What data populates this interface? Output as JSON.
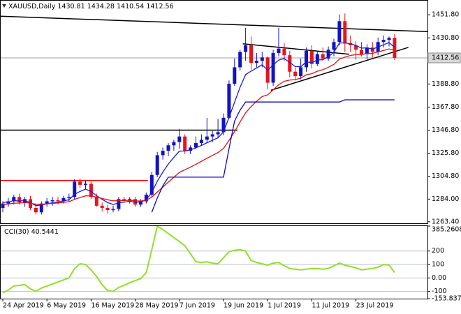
{
  "chart_data": [
    {
      "type": "candlestick",
      "symbol": "XAUUSD,Daily",
      "categories": [
        "24 Apr 2019",
        null,
        null,
        null,
        null,
        null,
        null,
        null,
        "6 May 2019",
        null,
        null,
        null,
        null,
        null,
        null,
        null,
        "16 May 2019",
        null,
        null,
        null,
        null,
        null,
        null,
        null,
        "28 May 2019",
        null,
        null,
        null,
        null,
        null,
        null,
        null,
        "7 Jun 2019",
        null,
        null,
        null,
        null,
        null,
        null,
        null,
        "19 Jun 2019",
        null,
        null,
        null,
        null,
        null,
        null,
        null,
        "1 Jul 2019",
        null,
        null,
        null,
        null,
        null,
        null,
        null,
        "11 Jul 2019",
        null,
        null,
        null,
        null,
        null,
        null,
        null,
        "23 Jul 2019",
        null,
        null,
        null,
        null,
        null,
        null,
        null
      ],
      "open": [
        1276,
        1280,
        1282,
        1286,
        1281,
        1284,
        1276,
        1272,
        1280,
        1282,
        1283,
        1282,
        1285,
        1286,
        1300,
        1297,
        1298,
        1286,
        1278,
        1276,
        1274,
        1275,
        1284,
        1283,
        1284,
        1279,
        1282,
        1288,
        1306,
        1324,
        1328,
        1333,
        1336,
        1341,
        1328,
        1331,
        1335,
        1338,
        1341,
        1343,
        1345,
        1358,
        1389,
        1404,
        1418,
        1424,
        1408,
        1410,
        1413,
        1390,
        1417,
        1421,
        1415,
        1400,
        1396,
        1404,
        1419,
        1407,
        1416,
        1412,
        1420,
        1427,
        1446,
        1426,
        1424,
        1420,
        1416,
        1422,
        1418,
        1427,
        1429,
        1430.81
      ],
      "high": [
        1282,
        1285,
        1288,
        1289,
        1286,
        1287,
        1280,
        1282,
        1285,
        1286,
        1286,
        1287,
        1289,
        1302,
        1303,
        1301,
        1300,
        1289,
        1281,
        1279,
        1278,
        1286,
        1286,
        1286,
        1286,
        1284,
        1290,
        1309,
        1327,
        1331,
        1335,
        1338,
        1348,
        1343,
        1333,
        1341,
        1343,
        1358,
        1346,
        1357,
        1362,
        1392,
        1412,
        1420,
        1440,
        1432,
        1417,
        1418,
        1414,
        1420,
        1440,
        1426,
        1419,
        1404,
        1412,
        1422,
        1424,
        1418,
        1422,
        1423,
        1430,
        1452,
        1453,
        1433,
        1428,
        1427,
        1425,
        1427,
        1431,
        1433,
        1432,
        1434.28
      ],
      "low": [
        1272,
        1277,
        1279,
        1279,
        1277,
        1274,
        1270,
        1270,
        1277,
        1278,
        1279,
        1280,
        1282,
        1284,
        1294,
        1293,
        1284,
        1277,
        1273,
        1271,
        1272,
        1273,
        1281,
        1280,
        1277,
        1277,
        1280,
        1286,
        1304,
        1320,
        1323,
        1328,
        1330,
        1325,
        1325,
        1330,
        1333,
        1335,
        1336,
        1340,
        1342,
        1357,
        1387,
        1401,
        1410,
        1402,
        1404,
        1404,
        1384,
        1387,
        1414,
        1410,
        1395,
        1392,
        1393,
        1400,
        1403,
        1405,
        1410,
        1410,
        1414,
        1424,
        1418,
        1418,
        1411,
        1414,
        1411,
        1413,
        1415,
        1422,
        1423,
        1410.54
      ],
      "close": [
        1280,
        1282,
        1286,
        1281,
        1284,
        1276,
        1272,
        1280,
        1282,
        1283,
        1282,
        1285,
        1286,
        1300,
        1297,
        1298,
        1286,
        1278,
        1276,
        1274,
        1275,
        1284,
        1283,
        1284,
        1279,
        1282,
        1288,
        1306,
        1324,
        1328,
        1333,
        1336,
        1341,
        1328,
        1331,
        1335,
        1338,
        1341,
        1343,
        1345,
        1358,
        1389,
        1404,
        1418,
        1424,
        1408,
        1410,
        1413,
        1390,
        1417,
        1421,
        1415,
        1400,
        1396,
        1404,
        1419,
        1407,
        1416,
        1412,
        1420,
        1427,
        1446,
        1426,
        1424,
        1420,
        1416,
        1422,
        1418,
        1427,
        1429,
        1430.81,
        1412.56
      ],
      "up_color": "#1212c4",
      "down_color": "#e8131b",
      "price_line_color": "#a0a0a0",
      "overlays": [
        {
          "color": "#1a1ad8",
          "values": [
            1281,
            1281.3,
            1282.7,
            1282.2,
            1282.7,
            1280.7,
            1278.1,
            1278.7,
            1279.7,
            1280.7,
            1281.1,
            1282.3,
            1283.4,
            1288.4,
            1291,
            1293.1,
            1291,
            1287.1,
            1283.8,
            1280.9,
            1279.1,
            1280.6,
            1281.3,
            1282.1,
            1281.2,
            1281.4,
            1283.4,
            1290.2,
            1300.3,
            1308.6,
            1316,
            1322,
            1327.7,
            1327.8,
            1328.8,
            1330.7,
            1332.9,
            1335.3,
            1337.6,
            1339.8,
            1345.3,
            1358.4,
            1372.1,
            1385.9,
            1397.3,
            1400.5,
            1403.4,
            1406.3,
            1401.4,
            1406.1,
            1410.6,
            1412,
            1408.4,
            1404.7,
            1404.5,
            1408.9,
            1408.3,
            1410.6,
            1411,
            1413.7,
            1417.7,
            1426.2,
            1426.1,
            1425.5,
            1423.9,
            1421.5,
            1421.7,
            1420.6,
            1422.5,
            1424.5,
            1426.5,
            1422.3
          ]
        },
        {
          "color": "#e01010",
          "values": [
            1279.1,
            1279.5,
            1280.3,
            1280.4,
            1280.9,
            1280.3,
            1279.3,
            1279.4,
            1279.7,
            1280.1,
            1280.5,
            1281,
            1281.6,
            1283.8,
            1285.4,
            1287,
            1286.9,
            1285.8,
            1284.6,
            1283.4,
            1282.4,
            1282.6,
            1282.7,
            1282.9,
            1282.4,
            1282.3,
            1283,
            1285.8,
            1290.4,
            1294.9,
            1299.5,
            1303.9,
            1308.3,
            1310.7,
            1313.1,
            1315.7,
            1318.4,
            1321.2,
            1323.8,
            1326.4,
            1330.2,
            1337.4,
            1345.4,
            1354.2,
            1362.6,
            1368.2,
            1373.2,
            1377.4,
            1378.9,
            1383.5,
            1388.1,
            1391.3,
            1392.4,
            1392.8,
            1394.2,
            1397.2,
            1398.2,
            1400.4,
            1401.8,
            1404,
            1406.7,
            1411.5,
            1413.3,
            1414.8,
            1415.6,
            1415.7,
            1416.5,
            1416.7,
            1418,
            1419.3,
            1420.7,
            1419.7
          ]
        },
        {
          "color": "#0a0ac0",
          "values": [
            null,
            null,
            null,
            null,
            null,
            null,
            null,
            null,
            null,
            null,
            null,
            null,
            null,
            null,
            null,
            null,
            null,
            null,
            null,
            null,
            null,
            null,
            null,
            null,
            null,
            null,
            null,
            1272,
            1285,
            1296,
            1304,
            1304,
            1304,
            1304,
            1304,
            1304,
            1304,
            1304,
            1304,
            1304,
            1304,
            1330,
            1355,
            1365,
            1372.4,
            1372.4,
            1372.4,
            1372.4,
            1372.4,
            1372.4,
            1372.4,
            1372.4,
            1372.4,
            1372.4,
            1372.4,
            1372.4,
            1372.4,
            1372.4,
            1372.4,
            1372.4,
            1372.4,
            1372.4,
            1374.4,
            1374.4,
            1374.4,
            1374.4,
            1374.4,
            1374.4,
            1374.4,
            1374.4,
            1374.4,
            1374.4
          ]
        }
      ],
      "trend_lines": [
        {
          "color": "#000000",
          "x": [
            -0.5,
            77.3
          ],
          "y": [
            1450.5,
            1436.5
          ]
        },
        {
          "color": "#000000",
          "x": [
            -0.5,
            42.5
          ],
          "y": [
            1346.8,
            1346.8
          ]
        },
        {
          "color": "#ff0000",
          "x": [
            -0.5,
            26.3
          ],
          "y": [
            1301,
            1301
          ]
        },
        {
          "color": "#000000",
          "x": [
            43.5,
            62.8
          ],
          "y": [
            1425.4,
            1415.9
          ]
        },
        {
          "color": "#000000",
          "x": [
            48.6,
            73.5
          ],
          "y": [
            1383.1,
            1422.1
          ]
        }
      ],
      "ylim": [
        1262,
        1464
      ],
      "yticks": [
        {
          "value": 1451.8,
          "label": "1451.80"
        },
        {
          "value": 1430.8,
          "label": "1430.80"
        },
        {
          "value": 1388.8,
          "label": "1388.80"
        },
        {
          "value": 1367.8,
          "label": "1367.80"
        },
        {
          "value": 1346.8,
          "label": "1346.80"
        },
        {
          "value": 1325.8,
          "label": "1325.80"
        },
        {
          "value": 1304.8,
          "label": "1304.80"
        },
        {
          "value": 1284,
          "label": "1284.00"
        },
        {
          "value": 1263.4,
          "label": "1263.40"
        }
      ]
    },
    {
      "type": "line",
      "title": "CCI(30)",
      "color": "#8fe02a",
      "level_color": "#b8c0cc",
      "values": [
        -110,
        -90,
        -60,
        -55,
        -50,
        -80,
        -100,
        -75,
        -60,
        -45,
        -30,
        -15,
        0,
        70,
        105,
        100,
        60,
        10,
        -50,
        -95,
        -100,
        -70,
        -55,
        -35,
        -20,
        -5,
        40,
        210,
        385,
        360,
        330,
        300,
        270,
        240,
        180,
        120,
        115,
        120,
        110,
        105,
        150,
        195,
        205,
        210,
        200,
        130,
        115,
        105,
        95,
        110,
        115,
        90,
        70,
        65,
        60,
        65,
        70,
        70,
        65,
        70,
        90,
        110,
        95,
        85,
        75,
        60,
        65,
        70,
        80,
        100,
        95,
        40.5441
      ],
      "ylim": [
        -153.8371,
        385.2608
      ],
      "yticks": [
        385.2608,
        200,
        100,
        {
          "value": 0,
          "label": "0.00"
        },
        -100,
        -153.8371
      ]
    }
  ]
}
